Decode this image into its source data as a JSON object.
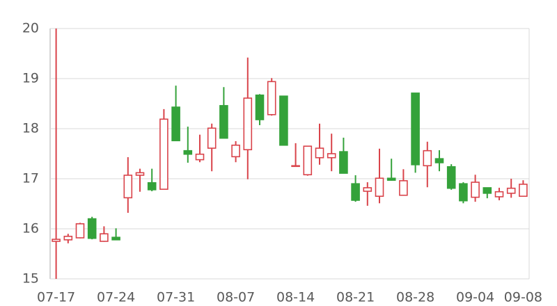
{
  "chart_data": {
    "type": "candlestick",
    "categories": [
      "07-17",
      null,
      null,
      null,
      null,
      "07-24",
      null,
      null,
      null,
      null,
      "07-31",
      null,
      null,
      null,
      null,
      "08-07",
      null,
      null,
      null,
      null,
      "08-14",
      null,
      null,
      null,
      null,
      "08-21",
      null,
      null,
      null,
      null,
      "08-28",
      null,
      null,
      null,
      null,
      "09-04",
      null,
      null,
      null,
      "09-08"
    ],
    "open": [
      15.75,
      15.78,
      15.82,
      16.2,
      15.75,
      15.83,
      16.62,
      17.07,
      16.92,
      16.79,
      18.43,
      17.56,
      17.38,
      17.61,
      18.46,
      17.44,
      17.58,
      18.67,
      18.28,
      18.65,
      17.25,
      17.08,
      17.42,
      17.42,
      17.54,
      16.9,
      16.75,
      16.65,
      17.01,
      16.67,
      18.71,
      17.26,
      17.4,
      17.24,
      16.9,
      16.63,
      16.82,
      16.64,
      16.71,
      16.65
    ],
    "high": [
      20,
      15.9,
      16.12,
      16.24,
      16.05,
      16.01,
      17.43,
      17.2,
      17.2,
      18.39,
      18.86,
      18.04,
      17.88,
      18.1,
      18.83,
      17.75,
      19.42,
      18.69,
      19.01,
      18.65,
      17.71,
      17.65,
      18.1,
      17.9,
      17.82,
      17.07,
      16.93,
      17.6,
      17.4,
      17.19,
      18.71,
      17.74,
      17.57,
      17.29,
      16.93,
      17.08,
      16.82,
      16.82,
      17.0,
      16.97
    ],
    "low": [
      15,
      15.71,
      15.81,
      15.79,
      15.74,
      15.78,
      16.32,
      16.74,
      16.75,
      16.79,
      17.76,
      17.32,
      17.33,
      17.15,
      17.81,
      17.33,
      16.99,
      18.07,
      18.26,
      17.67,
      17.25,
      17.06,
      17.28,
      17.15,
      17.11,
      16.54,
      16.46,
      16.51,
      16.96,
      16.67,
      17.12,
      16.83,
      17.15,
      16.78,
      16.51,
      16.54,
      16.61,
      16.57,
      16.62,
      16.65
    ],
    "close": [
      15.79,
      15.85,
      16.1,
      15.81,
      15.9,
      15.78,
      17.07,
      17.12,
      16.78,
      18.19,
      17.76,
      17.49,
      17.49,
      18.01,
      17.81,
      17.67,
      18.61,
      18.18,
      18.94,
      17.67,
      17.26,
      17.65,
      17.61,
      17.5,
      17.11,
      16.57,
      16.82,
      17.01,
      16.97,
      16.96,
      17.28,
      17.56,
      17.32,
      16.81,
      16.56,
      16.93,
      16.71,
      16.74,
      16.81,
      16.89
    ],
    "up_color": "#d9434a",
    "down_color": "#34a23a",
    "ylim": [
      15,
      20
    ],
    "yticks": [
      15,
      16,
      17,
      18,
      19,
      20
    ],
    "grid": true
  }
}
